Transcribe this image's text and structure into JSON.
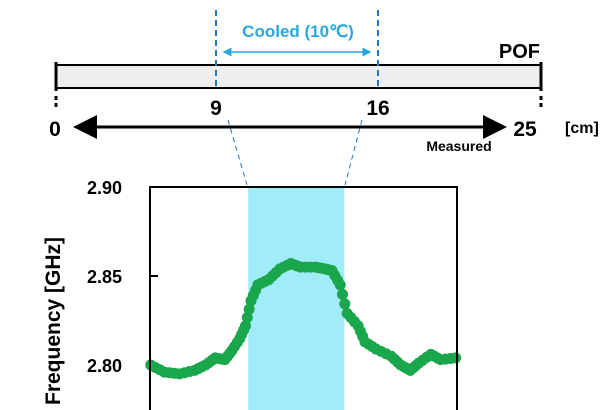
{
  "schematic": {
    "cooled_label": "Cooled (10℃)",
    "fiber_label": "POF",
    "start_label": "0",
    "end_label": "25",
    "unit_label": "[cm]",
    "cool_start_label": "9",
    "cool_end_label": "16",
    "measured_label": "Measured",
    "colors": {
      "cooled": "#29a8e0",
      "dashed_line": "#1f78c8",
      "fiber_fill": "#eeeeee"
    }
  },
  "chart_data": {
    "type": "scatter",
    "ylabel": "Frequency [GHz]",
    "ylim": [
      2.78,
      2.9
    ],
    "xlim": [
      1.85,
      24.2
    ],
    "yticks": [
      "2.90",
      "2.85",
      "2.80"
    ],
    "shaded_region": {
      "x": [
        9,
        16
      ],
      "color": "#a0ecf8"
    },
    "marker_color": "#1aa64a",
    "grid": false,
    "x": [
      1.9,
      2.9,
      4.0,
      5.1,
      5.9,
      6.6,
      7.3,
      7.8,
      8.4,
      8.8,
      9.2,
      9.7,
      10.5,
      11.3,
      12.1,
      12.8,
      13.9,
      14.6,
      15.1,
      15.7,
      16.2,
      17.0,
      17.5,
      18.3,
      19.4,
      20.1,
      20.8,
      21.4,
      22.3,
      23.0,
      24.1
    ],
    "y": [
      2.8,
      2.796,
      2.795,
      2.797,
      2.8,
      2.804,
      2.803,
      2.808,
      2.815,
      2.822,
      2.836,
      2.845,
      2.848,
      2.854,
      2.857,
      2.855,
      2.855,
      2.854,
      2.853,
      2.845,
      2.829,
      2.822,
      2.813,
      2.809,
      2.805,
      2.8,
      2.797,
      2.801,
      2.806,
      2.803,
      2.804
    ]
  }
}
